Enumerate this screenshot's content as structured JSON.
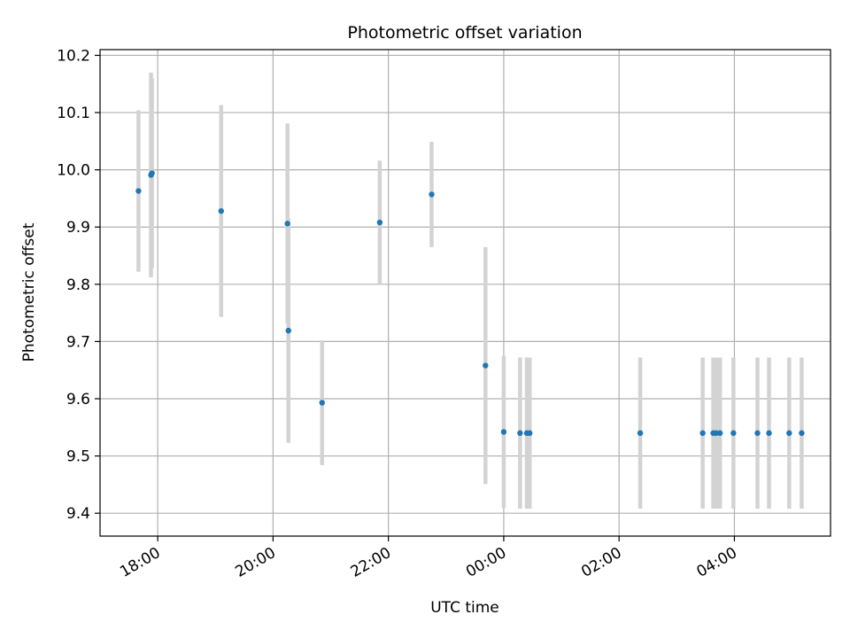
{
  "chart_data": {
    "type": "scatter",
    "title": "Photometric offset variation",
    "xlabel": "UTC time",
    "ylabel": "Photometric offset",
    "x_ticks": [
      "18:00",
      "20:00",
      "22:00",
      "00:00",
      "02:00",
      "04:00"
    ],
    "y_ticks": [
      "9.4",
      "9.5",
      "9.6",
      "9.7",
      "9.8",
      "9.9",
      "10.0",
      "10.1",
      "10.2"
    ],
    "ylim": [
      9.36,
      10.21
    ],
    "xlim": [
      "17:00",
      "05:40"
    ],
    "grid": true,
    "point_color": "#1f77b4",
    "errorbar_color": "#d3d3d3",
    "points": [
      {
        "x": "17:40",
        "y": 9.963,
        "ylo": 9.822,
        "yhi": 10.104
      },
      {
        "x": "17:53",
        "y": 9.991,
        "ylo": 9.812,
        "yhi": 10.17
      },
      {
        "x": "17:54",
        "y": 9.994,
        "ylo": 9.828,
        "yhi": 10.16
      },
      {
        "x": "19:06",
        "y": 9.928,
        "ylo": 9.743,
        "yhi": 10.113
      },
      {
        "x": "20:15",
        "y": 9.906,
        "ylo": 9.731,
        "yhi": 10.081
      },
      {
        "x": "20:16",
        "y": 9.719,
        "ylo": 9.523,
        "yhi": 9.915
      },
      {
        "x": "20:51",
        "y": 9.593,
        "ylo": 9.484,
        "yhi": 9.702
      },
      {
        "x": "21:51",
        "y": 9.908,
        "ylo": 9.8,
        "yhi": 10.016
      },
      {
        "x": "22:45",
        "y": 9.957,
        "ylo": 9.865,
        "yhi": 10.049
      },
      {
        "x": "23:41",
        "y": 9.658,
        "ylo": 9.451,
        "yhi": 9.865
      },
      {
        "x": "00:00",
        "y": 9.542,
        "ylo": 9.409,
        "yhi": 9.675
      },
      {
        "x": "00:17",
        "y": 9.54,
        "ylo": 9.408,
        "yhi": 9.672
      },
      {
        "x": "00:24",
        "y": 9.54,
        "ylo": 9.408,
        "yhi": 9.672
      },
      {
        "x": "00:27",
        "y": 9.54,
        "ylo": 9.408,
        "yhi": 9.672
      },
      {
        "x": "02:22",
        "y": 9.54,
        "ylo": 9.408,
        "yhi": 9.672
      },
      {
        "x": "03:27",
        "y": 9.54,
        "ylo": 9.408,
        "yhi": 9.672
      },
      {
        "x": "03:38",
        "y": 9.54,
        "ylo": 9.408,
        "yhi": 9.672
      },
      {
        "x": "03:41",
        "y": 9.54,
        "ylo": 9.408,
        "yhi": 9.672
      },
      {
        "x": "03:45",
        "y": 9.54,
        "ylo": 9.408,
        "yhi": 9.672
      },
      {
        "x": "03:59",
        "y": 9.54,
        "ylo": 9.408,
        "yhi": 9.672
      },
      {
        "x": "04:24",
        "y": 9.54,
        "ylo": 9.408,
        "yhi": 9.672
      },
      {
        "x": "04:36",
        "y": 9.54,
        "ylo": 9.408,
        "yhi": 9.672
      },
      {
        "x": "04:57",
        "y": 9.54,
        "ylo": 9.408,
        "yhi": 9.672
      },
      {
        "x": "05:10",
        "y": 9.54,
        "ylo": 9.408,
        "yhi": 9.672
      }
    ]
  }
}
